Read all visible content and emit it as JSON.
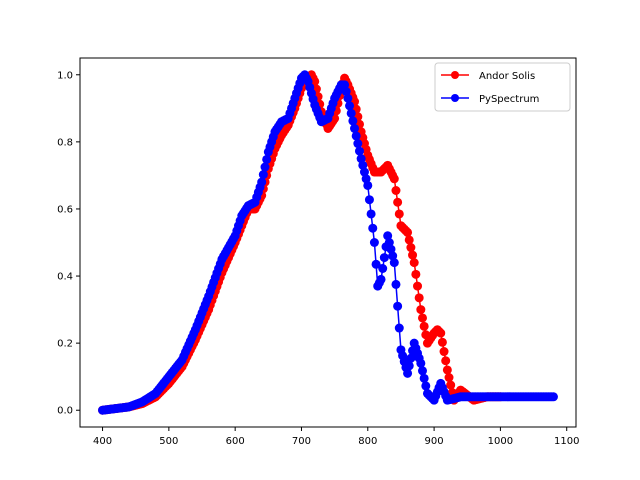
{
  "chart_data": {
    "type": "line",
    "title": "",
    "xlabel": "",
    "ylabel": "",
    "xlim": [
      366,
      1114
    ],
    "ylim": [
      -0.05,
      1.05
    ],
    "xticks": [
      400,
      500,
      600,
      700,
      800,
      900,
      1000,
      1100
    ],
    "yticks": [
      0.0,
      0.2,
      0.4,
      0.6,
      0.8,
      1.0
    ],
    "xtick_labels": [
      "400",
      "500",
      "600",
      "700",
      "800",
      "900",
      "1000",
      "1100"
    ],
    "ytick_labels": [
      "0.0",
      "0.2",
      "0.4",
      "0.6",
      "0.8",
      "1.0"
    ],
    "grid": false,
    "legend_position": "top-right",
    "series": [
      {
        "name": "Andor Solis",
        "color": "#ff0000",
        "marker": "circle",
        "x": [
          400,
          420,
          440,
          460,
          480,
          500,
          520,
          540,
          560,
          580,
          600,
          610,
          620,
          630,
          640,
          650,
          660,
          670,
          680,
          690,
          700,
          710,
          715,
          720,
          730,
          740,
          750,
          760,
          765,
          770,
          780,
          790,
          800,
          810,
          820,
          830,
          840,
          850,
          860,
          870,
          880,
          890,
          900,
          905,
          910,
          920,
          930,
          940,
          960,
          980,
          1000
        ],
        "y": [
          0.0,
          0.005,
          0.01,
          0.02,
          0.04,
          0.08,
          0.13,
          0.21,
          0.3,
          0.41,
          0.5,
          0.55,
          0.6,
          0.6,
          0.64,
          0.72,
          0.78,
          0.82,
          0.85,
          0.9,
          0.96,
          0.99,
          1.0,
          0.98,
          0.89,
          0.84,
          0.87,
          0.96,
          0.99,
          0.97,
          0.92,
          0.83,
          0.76,
          0.71,
          0.71,
          0.73,
          0.69,
          0.55,
          0.53,
          0.44,
          0.3,
          0.2,
          0.23,
          0.24,
          0.23,
          0.12,
          0.03,
          0.06,
          0.03,
          0.04,
          0.04
        ]
      },
      {
        "name": "PySpectrum",
        "color": "#0000ff",
        "marker": "circle",
        "x": [
          400,
          420,
          440,
          460,
          480,
          500,
          520,
          540,
          560,
          580,
          600,
          610,
          620,
          630,
          640,
          650,
          660,
          670,
          680,
          690,
          700,
          705,
          710,
          720,
          730,
          740,
          750,
          760,
          765,
          770,
          780,
          790,
          800,
          810,
          815,
          820,
          830,
          840,
          850,
          860,
          870,
          880,
          890,
          900,
          910,
          920,
          940,
          960,
          980,
          1000,
          1020,
          1040,
          1060,
          1080
        ],
        "y": [
          0.0,
          0.005,
          0.01,
          0.025,
          0.05,
          0.1,
          0.15,
          0.24,
          0.34,
          0.45,
          0.52,
          0.58,
          0.61,
          0.62,
          0.68,
          0.77,
          0.83,
          0.86,
          0.87,
          0.93,
          0.99,
          1.0,
          0.98,
          0.91,
          0.86,
          0.87,
          0.93,
          0.97,
          0.97,
          0.93,
          0.84,
          0.75,
          0.67,
          0.5,
          0.37,
          0.39,
          0.52,
          0.44,
          0.18,
          0.11,
          0.2,
          0.14,
          0.05,
          0.03,
          0.08,
          0.03,
          0.04,
          0.04,
          0.04,
          0.04,
          0.04,
          0.04,
          0.04,
          0.04
        ]
      }
    ]
  }
}
